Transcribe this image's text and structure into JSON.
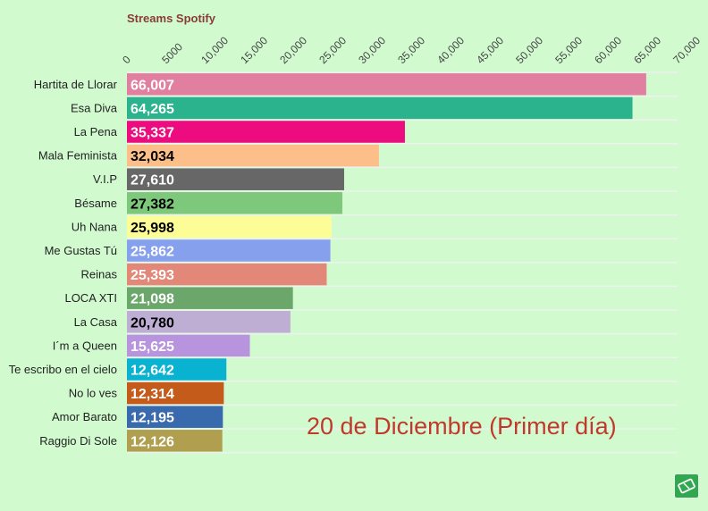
{
  "chart_data": {
    "type": "bar",
    "orientation": "horizontal",
    "title": "Streams Spotify",
    "xlim": [
      0,
      70000
    ],
    "ticks": [
      0,
      5000,
      10000,
      15000,
      20000,
      25000,
      30000,
      35000,
      40000,
      45000,
      50000,
      55000,
      60000,
      65000,
      70000
    ],
    "tick_labels": [
      "0",
      "5000",
      "10,000",
      "15,000",
      "20,000",
      "25,000",
      "30,000",
      "35,000",
      "40,000",
      "45,000",
      "50,000",
      "55,000",
      "60,000",
      "65,000",
      "70,000"
    ],
    "categories": [
      "Hartita de Llorar",
      "Esa Diva",
      "La Pena",
      "Mala Feminista",
      "V.I.P",
      "Bésame",
      "Uh Nana",
      "Me Gustas Tú",
      "Reinas",
      "LOCA XTI",
      "La Casa",
      "I´m a Queen",
      "Te escribo en el cielo",
      "No lo ves",
      "Amor Barato",
      "Raggio Di Sole"
    ],
    "values": [
      66007,
      64265,
      35337,
      32034,
      27610,
      27382,
      25998,
      25862,
      25393,
      21098,
      20780,
      15625,
      12642,
      12314,
      12195,
      12126
    ],
    "value_labels": [
      "66,007",
      "64,265",
      "35,337",
      "32,034",
      "27,610",
      "27,382",
      "25,998",
      "25,862",
      "25,393",
      "21,098",
      "20,780",
      "15,625",
      "12,642",
      "12,314",
      "12,195",
      "12,126"
    ],
    "colors": [
      "#e17fa0",
      "#2bb38e",
      "#ec0c7f",
      "#fdbf8a",
      "#676767",
      "#7dc87b",
      "#fdfd98",
      "#86a0ed",
      "#e38879",
      "#6ba76a",
      "#bfaed4",
      "#b894de",
      "#0ab2d1",
      "#c45b1a",
      "#396aad",
      "#b09f4f"
    ],
    "label_colors": [
      "#ffffff",
      "#ffffff",
      "#ffffff",
      "#000000",
      "#ffffff",
      "#000000",
      "#000000",
      "#ffffff",
      "#ffffff",
      "#ffffff",
      "#000000",
      "#ffffff",
      "#ffffff",
      "#ffffff",
      "#ffffff",
      "#ffffff"
    ],
    "title_color": "#8b3a3a",
    "grid": true,
    "annotation": "20 de Diciembre (Primer día)"
  }
}
